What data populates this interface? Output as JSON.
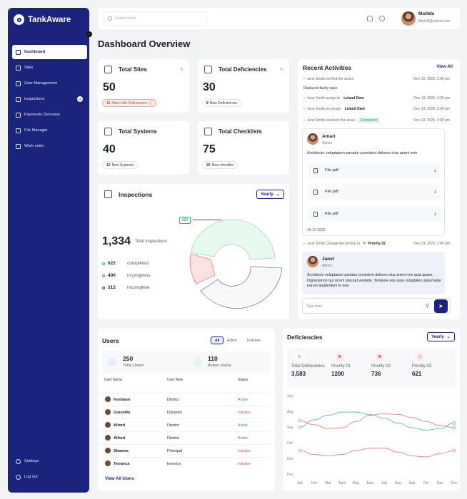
{
  "app": {
    "name": "TankAware"
  },
  "sidebar": {
    "items": [
      {
        "label": "Dashboard",
        "active": true
      },
      {
        "label": "Sites"
      },
      {
        "label": "User Management"
      },
      {
        "label": "Inspections",
        "badge": "10"
      },
      {
        "label": "Payments Overview"
      },
      {
        "label": "File Manager"
      },
      {
        "label": "Work order"
      }
    ],
    "bottom": [
      {
        "label": "Settings"
      },
      {
        "label": "Log out"
      }
    ]
  },
  "topbar": {
    "search_placeholder": "Search here",
    "user_name": "Matilde",
    "user_email": "Barr18@yahoo.com"
  },
  "page_title": "Dashboard Overview",
  "stats": {
    "sites": {
      "title": "Total Sites",
      "value": "50",
      "pill_num": "15",
      "pill_text": "Sites with Deficiencies"
    },
    "deficiencies": {
      "title": "Total Deficiencies",
      "value": "30",
      "pill_num": "8",
      "pill_text": "New Deficiencies"
    },
    "systems": {
      "title": "Total Systems",
      "value": "40",
      "pill_num": "12",
      "pill_text": "New Systems"
    },
    "checklists": {
      "title": "Total Checklists",
      "value": "75",
      "pill_num": "25",
      "pill_text": "New checklist"
    }
  },
  "inspections": {
    "title": "Inspections",
    "period": "Yearly",
    "total": "1,334",
    "total_label": "Total Inspections",
    "tooltip": "622",
    "legend": [
      {
        "value": "622",
        "label": "completed",
        "color": "#35b06a"
      },
      {
        "value": "400",
        "label": "in-progress",
        "color": "#e0534f"
      },
      {
        "value": "312",
        "label": "incomplete",
        "color": "#333333"
      }
    ]
  },
  "activities": {
    "title": "Recent Activities",
    "view_all": "View All",
    "line1": {
      "text": "Jane Smith verified the action",
      "time": "Dec 19, 2025, 3:00 pm"
    },
    "plain1": "Replaced faulty valve",
    "line2": {
      "text": "Jane Smith assign to",
      "who": "Leland Dare",
      "time": "Dec 19, 2025, 3:00 pm"
    },
    "line3": {
      "text": "Jane Smith un assign",
      "who": "Leland Dare",
      "time": "Dec 19, 2025, 3:00 pm"
    },
    "line4": {
      "text": "Jane Smith resolved this issue",
      "badge": "Completed",
      "time": "Dec 19, 2025, 3:00 pm"
    },
    "msg1": {
      "name": "Amari",
      "role": "Admin",
      "text": "Architecto voluptatum pariatur provident dolores eius animi rem",
      "date": "16-12-2025",
      "files": [
        "File.pdf",
        "File.pdf",
        "File.pdf"
      ]
    },
    "line5": {
      "text": "Jane Smith Change the priority to",
      "priority": "Priority 02",
      "time": "Dec 19, 2025, 3:00 pm"
    },
    "msg2": {
      "name": "Janet",
      "role": "Admin",
      "text": "Architecto voluptatum pariatur provident dolores eius animi rem quia ipsum. Dignissimos qui rerum placeat veritatis. Tempore eos quia voluptates aspernatur earum laudantium in iure."
    },
    "input_placeholder": "Type here"
  },
  "users": {
    "title": "Users",
    "tabs": [
      "All",
      "Active",
      "In Active"
    ],
    "total_value": "250",
    "total_label": "Total Users",
    "active_value": "110",
    "active_label": "Active Users",
    "columns": [
      "User Name",
      "User Role",
      "Status"
    ],
    "rows": [
      {
        "name": "Keshaun",
        "role": "District",
        "status": "Active"
      },
      {
        "name": "Granville",
        "role": "Dynamic",
        "status": "Inactive"
      },
      {
        "name": "Alford",
        "role": "District",
        "status": "Active"
      },
      {
        "name": "Alford",
        "role": "District",
        "status": "Active"
      },
      {
        "name": "Shawna",
        "role": "Principal",
        "status": "Inactive"
      },
      {
        "name": "Terrance",
        "role": "Investor",
        "status": "Inactive"
      }
    ],
    "view_all": "View All Users"
  },
  "deficiencies": {
    "title": "Deficiencies",
    "period": "Yearly",
    "items": [
      {
        "label": "Total Deficiencies",
        "value": "3,583"
      },
      {
        "label": "Priority 01",
        "value": "1200"
      },
      {
        "label": "Priority 02",
        "value": "736"
      },
      {
        "label": "Priority 03",
        "value": "621"
      }
    ]
  },
  "chart_data": {
    "type": "line",
    "x": [
      "Jan",
      "Feb",
      "Mar",
      "April",
      "May",
      "June",
      "July",
      "Aug",
      "Sep",
      "Oct",
      "Nov",
      "Dec"
    ],
    "y_categories": [
      "July",
      "Aug",
      "Sep",
      "Oct",
      "Nov",
      "Dec"
    ],
    "series": [
      {
        "color": "#5fbf8a",
        "values": [
          2.0,
          1.55,
          1.25,
          1.05,
          1.05,
          1.2,
          1.45,
          1.75,
          2.05,
          2.2,
          2.1,
          1.75
        ]
      },
      {
        "color": "#e6857f",
        "values": [
          1.6,
          1.85,
          2.1,
          2.05,
          1.65,
          1.25,
          1.15,
          1.2,
          1.4,
          1.65,
          1.9,
          2.05
        ]
      },
      {
        "color": "#e6857f",
        "values": [
          3.5,
          3.75,
          3.85,
          3.75,
          3.5,
          3.35,
          3.35,
          3.6,
          3.85,
          3.9,
          3.7,
          3.5
        ]
      }
    ]
  }
}
